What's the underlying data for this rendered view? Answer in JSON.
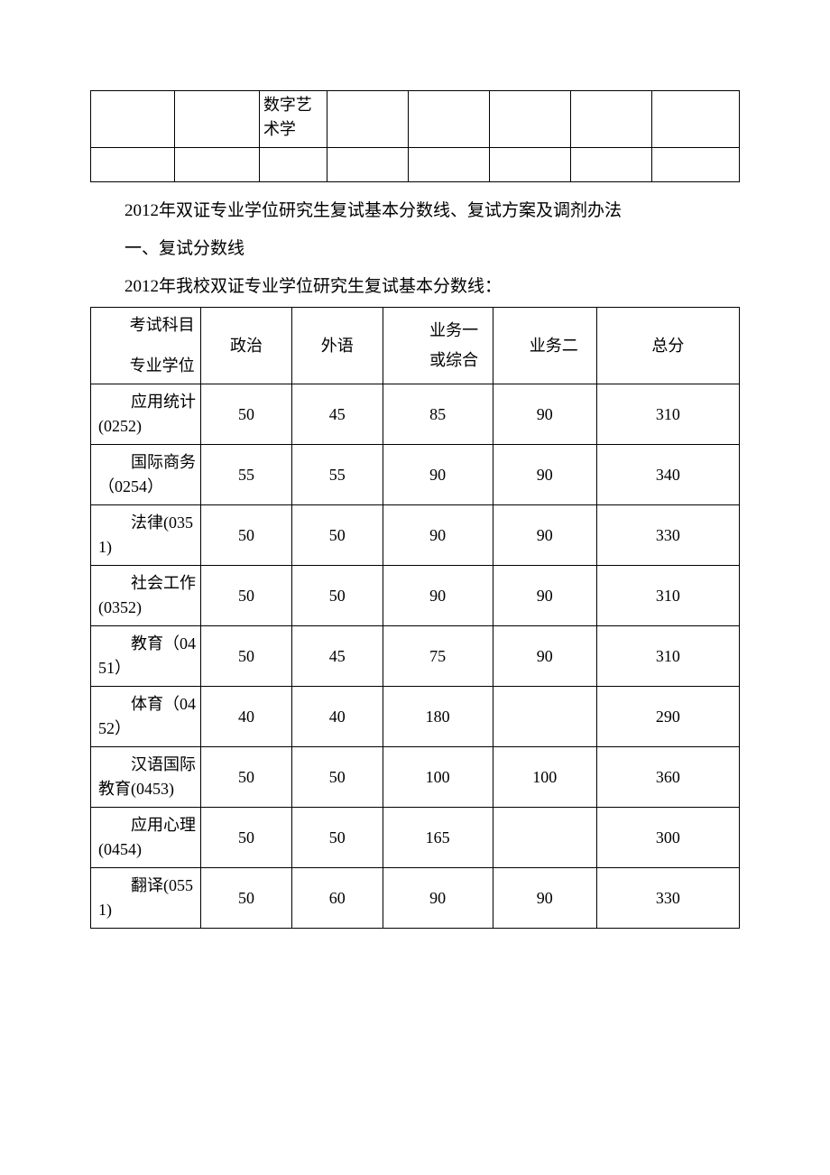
{
  "topTable": {
    "frag_cell_text": "数字艺术学",
    "col_widths_pct": [
      13,
      13,
      10.5,
      12.5,
      12.5,
      12.5,
      12.5,
      13.5
    ]
  },
  "intro": {
    "line1": "2012年双证专业学位研究生复试基本分数线、复试方案及调剂办法",
    "line2": "一、复试分数线",
    "line3": "2012年我校双证专业学位研究生复试基本分数线："
  },
  "mainTable": {
    "col_widths_pct": [
      17,
      14,
      14,
      17,
      16,
      22
    ],
    "header": {
      "c1a": "考试科目",
      "c1b": "专业学位",
      "c2": "政治",
      "c3": "外语",
      "c4a": "业务一",
      "c4b": "或综合",
      "c5": "业务二",
      "c6": "总分"
    },
    "rows": [
      {
        "name": "应用统计(0252)",
        "multiline": true,
        "v": [
          "50",
          "45",
          "85",
          "90",
          "310"
        ]
      },
      {
        "name": "国际商务（0254）",
        "multiline": true,
        "v": [
          "55",
          "55",
          "90",
          "90",
          "340"
        ]
      },
      {
        "name": "法律(0351)",
        "multiline": false,
        "v": [
          "50",
          "50",
          "90",
          "90",
          "330"
        ]
      },
      {
        "name": "社会工作(0352)",
        "multiline": true,
        "v": [
          "50",
          "50",
          "90",
          "90",
          "310"
        ]
      },
      {
        "name": "教育（0451）",
        "multiline": false,
        "v": [
          "50",
          "45",
          "75",
          "90",
          "310"
        ]
      },
      {
        "name": "体育（0452）",
        "multiline": false,
        "v": [
          "40",
          "40",
          "180",
          "",
          "290"
        ]
      },
      {
        "name": "汉语国际教育(0453)",
        "multiline": true,
        "v": [
          "50",
          "50",
          "100",
          "100",
          "360"
        ]
      },
      {
        "name": "应用心理(0454)",
        "multiline": true,
        "v": [
          "50",
          "50",
          "165",
          "",
          "300"
        ]
      },
      {
        "name": "翻译(0551)",
        "multiline": false,
        "v": [
          "50",
          "60",
          "90",
          "90",
          "330"
        ]
      }
    ]
  }
}
